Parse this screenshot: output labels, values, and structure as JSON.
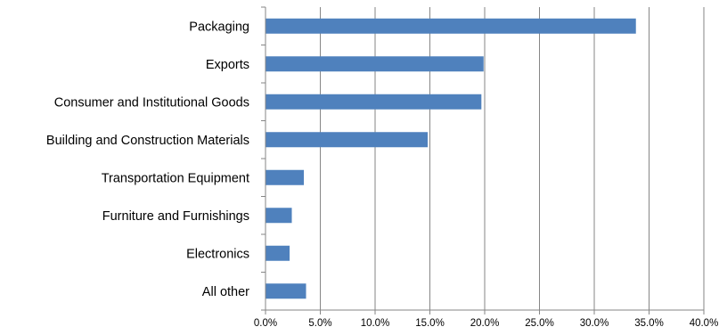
{
  "chart_data": {
    "type": "bar",
    "orientation": "horizontal",
    "categories": [
      "Packaging",
      "Exports",
      "Consumer and Institutional Goods",
      "Building and Construction Materials",
      "Transportation Equipment",
      "Furniture and Furnishings",
      "Electronics",
      "All other"
    ],
    "values": [
      33.8,
      19.9,
      19.7,
      14.8,
      3.5,
      2.4,
      2.2,
      3.7
    ],
    "value_unit": "%",
    "title": "",
    "xlabel": "",
    "ylabel": "",
    "xlim": [
      0,
      40
    ],
    "x_ticks": [
      "0.0%",
      "5.0%",
      "10.0%",
      "15.0%",
      "20.0%",
      "25.0%",
      "30.0%",
      "35.0%",
      "40.0%"
    ],
    "grid": "vertical",
    "legend": "none",
    "bar_color": "#4F81BD",
    "grid_color": "#868686"
  }
}
